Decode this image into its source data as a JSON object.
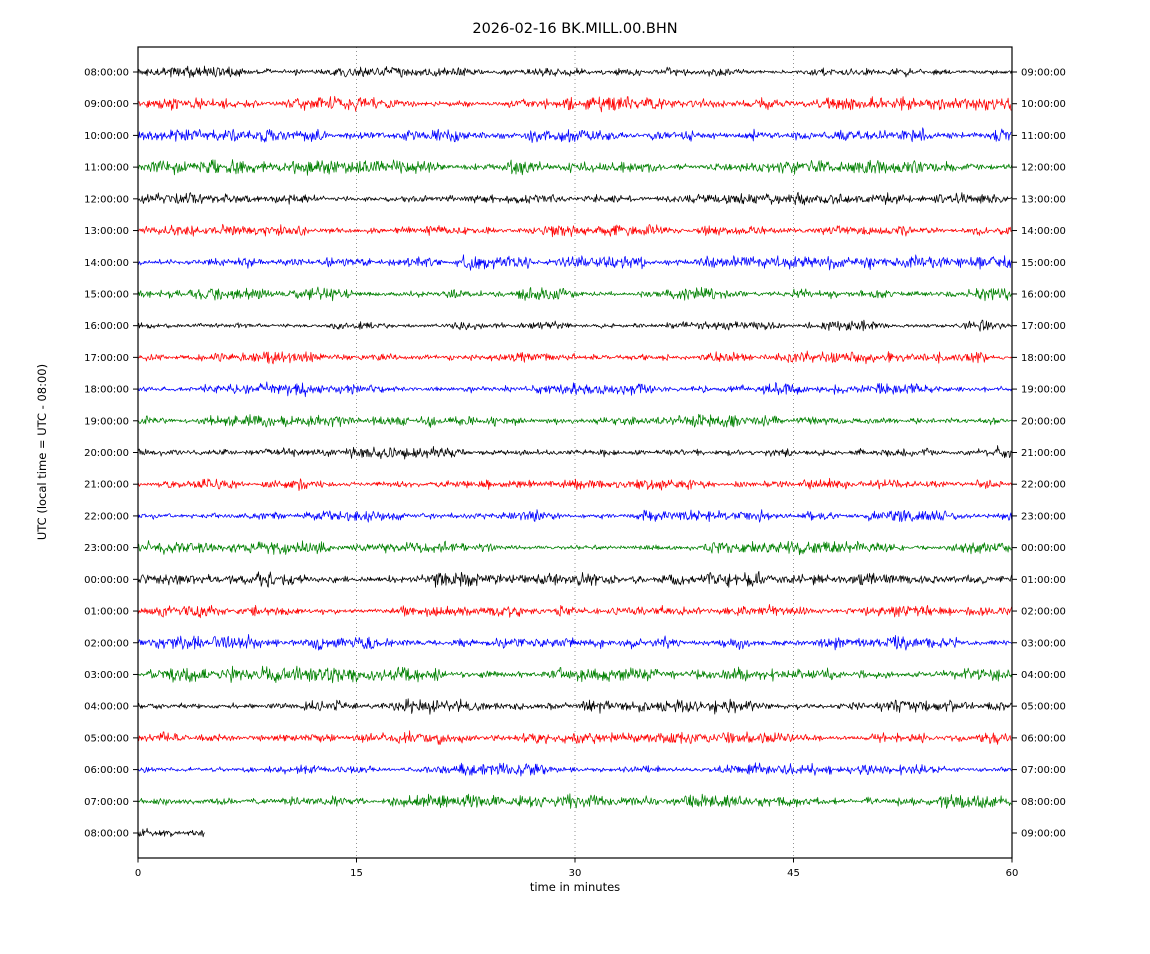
{
  "chart_data": {
    "type": "line",
    "title": "2026-02-16 BK.MILL.00.BHN",
    "xlabel": "time in minutes",
    "ylabel": "UTC (local time = UTC - 08:00)",
    "xlim": [
      0,
      60
    ],
    "x_ticks": [
      0,
      15,
      30,
      45,
      60
    ],
    "grid": "dotted vertical gridlines at x = 15, 30, 45",
    "legend": "none",
    "color_cycle": [
      "#000000",
      "#ff0000",
      "#0000ff",
      "#008000"
    ],
    "description": "Helicorder-style seismogram: 25 one-hour noise traces stacked vertically, left labels = UTC start of row, right labels = UTC end of row, last row truncated",
    "rows": [
      {
        "left": "08:00:00",
        "right": "09:00:00",
        "color": "#000000",
        "duration_min": 60
      },
      {
        "left": "09:00:00",
        "right": "10:00:00",
        "color": "#ff0000",
        "duration_min": 60
      },
      {
        "left": "10:00:00",
        "right": "11:00:00",
        "color": "#0000ff",
        "duration_min": 60
      },
      {
        "left": "11:00:00",
        "right": "12:00:00",
        "color": "#008000",
        "duration_min": 60
      },
      {
        "left": "12:00:00",
        "right": "13:00:00",
        "color": "#000000",
        "duration_min": 60
      },
      {
        "left": "13:00:00",
        "right": "14:00:00",
        "color": "#ff0000",
        "duration_min": 60
      },
      {
        "left": "14:00:00",
        "right": "15:00:00",
        "color": "#0000ff",
        "duration_min": 60
      },
      {
        "left": "15:00:00",
        "right": "16:00:00",
        "color": "#008000",
        "duration_min": 60
      },
      {
        "left": "16:00:00",
        "right": "17:00:00",
        "color": "#000000",
        "duration_min": 60
      },
      {
        "left": "17:00:00",
        "right": "18:00:00",
        "color": "#ff0000",
        "duration_min": 60
      },
      {
        "left": "18:00:00",
        "right": "19:00:00",
        "color": "#0000ff",
        "duration_min": 60
      },
      {
        "left": "19:00:00",
        "right": "20:00:00",
        "color": "#008000",
        "duration_min": 60
      },
      {
        "left": "20:00:00",
        "right": "21:00:00",
        "color": "#000000",
        "duration_min": 60
      },
      {
        "left": "21:00:00",
        "right": "22:00:00",
        "color": "#ff0000",
        "duration_min": 60
      },
      {
        "left": "22:00:00",
        "right": "23:00:00",
        "color": "#0000ff",
        "duration_min": 60
      },
      {
        "left": "23:00:00",
        "right": "00:00:00",
        "color": "#008000",
        "duration_min": 60
      },
      {
        "left": "00:00:00",
        "right": "01:00:00",
        "color": "#000000",
        "duration_min": 60
      },
      {
        "left": "01:00:00",
        "right": "02:00:00",
        "color": "#ff0000",
        "duration_min": 60
      },
      {
        "left": "02:00:00",
        "right": "03:00:00",
        "color": "#0000ff",
        "duration_min": 60
      },
      {
        "left": "03:00:00",
        "right": "04:00:00",
        "color": "#008000",
        "duration_min": 60
      },
      {
        "left": "04:00:00",
        "right": "05:00:00",
        "color": "#000000",
        "duration_min": 60
      },
      {
        "left": "05:00:00",
        "right": "06:00:00",
        "color": "#ff0000",
        "duration_min": 60
      },
      {
        "left": "06:00:00",
        "right": "07:00:00",
        "color": "#0000ff",
        "duration_min": 60
      },
      {
        "left": "07:00:00",
        "right": "08:00:00",
        "color": "#008000",
        "duration_min": 60
      },
      {
        "left": "08:00:00",
        "right": "09:00:00",
        "color": "#000000",
        "duration_min": 4.6
      }
    ]
  }
}
